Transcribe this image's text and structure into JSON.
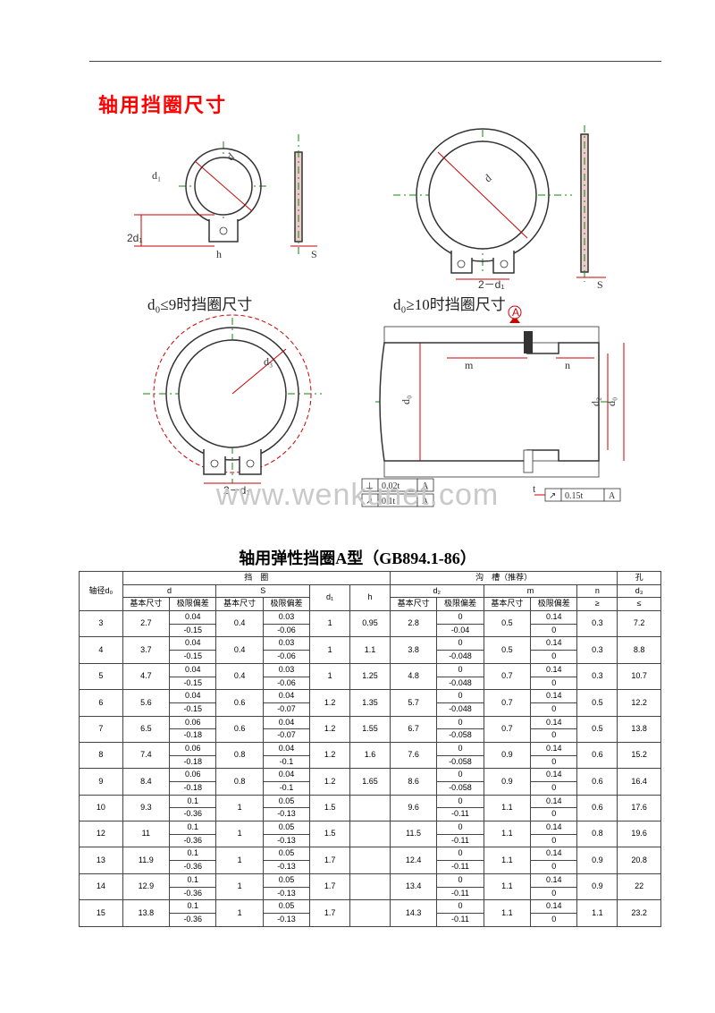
{
  "page_title": "轴用挡圈尺寸",
  "diagrams": {
    "d0_le_9_caption": "d₀≤9时挡圈尺寸",
    "d0_ge_10_caption": "d₀≥10时挡圈尺寸",
    "dim_labels": {
      "d": "d",
      "d1": "d₁",
      "two_d1": "2d₁",
      "h": "h",
      "S": "S",
      "d3": "d₃",
      "m": "m",
      "n": "n",
      "d0": "d₀",
      "d2": "d₂",
      "t": "t",
      "2_minus_d1": "2－d₁"
    },
    "tolerance_callouts": {
      "perp": "⊥ 0.02t  A",
      "runout": "↗ 0.1t  A",
      "runout2": "↗ 0.15t  A",
      "datum": "A"
    },
    "colors": {
      "centerline": "#0b8a0b",
      "dimension": "#c00",
      "outline": "#333",
      "dashed_envelope": "#c00",
      "hatch": "#b53232"
    }
  },
  "watermark": "www.wenkunet.com",
  "table": {
    "title": "轴用弹性挡圈A型（GB894.1-86）",
    "header": {
      "axle_dia": "轴径d₀",
      "ring_group": "挡　圈",
      "groove_group": "沟　槽（推荐）",
      "hole": "孔",
      "d": "d",
      "S": "S",
      "d1": "d₁",
      "h": "h",
      "d2": "d₂",
      "m": "m",
      "n": "n",
      "d3": "d₃",
      "nominal": "基本尺寸",
      "limit": "极限偏差",
      "ge": "≥",
      "le": "≤"
    },
    "rows": [
      {
        "d0": "3",
        "d": "2.7",
        "dtol": [
          "0.04",
          "-0.15"
        ],
        "S": "0.4",
        "Stol": [
          "0.03",
          "-0.06"
        ],
        "d1": "1",
        "h": "0.95",
        "d2": "2.8",
        "d2tol": [
          "0",
          "-0.04"
        ],
        "m": "0.5",
        "mtol": [
          "0.14",
          "0"
        ],
        "n": "0.3",
        "d3": "7.2"
      },
      {
        "d0": "4",
        "d": "3.7",
        "dtol": [
          "0.04",
          "-0.15"
        ],
        "S": "0.4",
        "Stol": [
          "0.03",
          "-0.06"
        ],
        "d1": "1",
        "h": "1.1",
        "d2": "3.8",
        "d2tol": [
          "0",
          "-0.048"
        ],
        "m": "0.5",
        "mtol": [
          "0.14",
          "0"
        ],
        "n": "0.3",
        "d3": "8.8"
      },
      {
        "d0": "5",
        "d": "4.7",
        "dtol": [
          "0.04",
          "-0.15"
        ],
        "S": "0.4",
        "Stol": [
          "0.03",
          "-0.06"
        ],
        "d1": "1",
        "h": "1.25",
        "d2": "4.8",
        "d2tol": [
          "0",
          "-0.048"
        ],
        "m": "0.7",
        "mtol": [
          "0.14",
          "0"
        ],
        "n": "0.3",
        "d3": "10.7"
      },
      {
        "d0": "6",
        "d": "5.6",
        "dtol": [
          "0.04",
          "-0.15"
        ],
        "S": "0.6",
        "Stol": [
          "0.04",
          "-0.07"
        ],
        "d1": "1.2",
        "h": "1.35",
        "d2": "5.7",
        "d2tol": [
          "0",
          "-0.048"
        ],
        "m": "0.7",
        "mtol": [
          "0.14",
          "0"
        ],
        "n": "0.5",
        "d3": "12.2"
      },
      {
        "d0": "7",
        "d": "6.5",
        "dtol": [
          "0.06",
          "-0.18"
        ],
        "S": "0.6",
        "Stol": [
          "0.04",
          "-0.07"
        ],
        "d1": "1.2",
        "h": "1.55",
        "d2": "6.7",
        "d2tol": [
          "0",
          "-0.058"
        ],
        "m": "0.7",
        "mtol": [
          "0.14",
          "0"
        ],
        "n": "0.5",
        "d3": "13.8"
      },
      {
        "d0": "8",
        "d": "7.4",
        "dtol": [
          "0.06",
          "-0.18"
        ],
        "S": "0.8",
        "Stol": [
          "0.04",
          "-0.1"
        ],
        "d1": "1.2",
        "h": "1.6",
        "d2": "7.6",
        "d2tol": [
          "0",
          "-0.058"
        ],
        "m": "0.9",
        "mtol": [
          "0.14",
          "0"
        ],
        "n": "0.6",
        "d3": "15.2"
      },
      {
        "d0": "9",
        "d": "8.4",
        "dtol": [
          "0.06",
          "-0.18"
        ],
        "S": "0.8",
        "Stol": [
          "0.04",
          "-0.1"
        ],
        "d1": "1.2",
        "h": "1.65",
        "d2": "8.6",
        "d2tol": [
          "0",
          "-0.058"
        ],
        "m": "0.9",
        "mtol": [
          "0.14",
          "0"
        ],
        "n": "0.6",
        "d3": "16.4"
      },
      {
        "d0": "10",
        "d": "9.3",
        "dtol": [
          "0.1",
          "-0.36"
        ],
        "S": "1",
        "Stol": [
          "0.05",
          "-0.13"
        ],
        "d1": "1.5",
        "h": "",
        "d2": "9.6",
        "d2tol": [
          "0",
          "-0.11"
        ],
        "m": "1.1",
        "mtol": [
          "0.14",
          "0"
        ],
        "n": "0.6",
        "d3": "17.6"
      },
      {
        "d0": "12",
        "d": "11",
        "dtol": [
          "0.1",
          "-0.36"
        ],
        "S": "1",
        "Stol": [
          "0.05",
          "-0.13"
        ],
        "d1": "1.5",
        "h": "",
        "d2": "11.5",
        "d2tol": [
          "0",
          "-0.11"
        ],
        "m": "1.1",
        "mtol": [
          "0.14",
          "0"
        ],
        "n": "0.8",
        "d3": "19.6"
      },
      {
        "d0": "13",
        "d": "11.9",
        "dtol": [
          "0.1",
          "-0.36"
        ],
        "S": "1",
        "Stol": [
          "0.05",
          "-0.13"
        ],
        "d1": "1.7",
        "h": "",
        "d2": "12.4",
        "d2tol": [
          "0",
          "-0.11"
        ],
        "m": "1.1",
        "mtol": [
          "0.14",
          "0"
        ],
        "n": "0.9",
        "d3": "20.8"
      },
      {
        "d0": "14",
        "d": "12.9",
        "dtol": [
          "0.1",
          "-0.36"
        ],
        "S": "1",
        "Stol": [
          "0.05",
          "-0.13"
        ],
        "d1": "1.7",
        "h": "",
        "d2": "13.4",
        "d2tol": [
          "0",
          "-0.11"
        ],
        "m": "1.1",
        "mtol": [
          "0.14",
          "0"
        ],
        "n": "0.9",
        "d3": "22"
      },
      {
        "d0": "15",
        "d": "13.8",
        "dtol": [
          "0.1",
          "-0.36"
        ],
        "S": "1",
        "Stol": [
          "0.05",
          "-0.13"
        ],
        "d1": "1.7",
        "h": "",
        "d2": "14.3",
        "d2tol": [
          "0",
          "-0.11"
        ],
        "m": "1.1",
        "mtol": [
          "0.14",
          "0"
        ],
        "n": "1.1",
        "d3": "23.2"
      }
    ],
    "col_widths_pct": [
      6.5,
      7,
      7,
      7,
      7,
      6,
      6,
      7,
      7,
      7,
      7,
      6,
      6.5
    ],
    "border_color": "#444",
    "font_size": 9
  }
}
